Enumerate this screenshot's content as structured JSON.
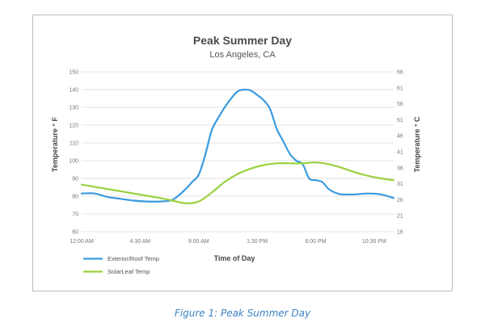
{
  "chart_data": {
    "type": "line",
    "title": "Peak Summer Day",
    "subtitle": "Los Angeles, CA",
    "xlabel": "Time of Day",
    "ylabel_left": "Temperature ° F",
    "ylabel_right": "Temperature ° C",
    "x_ticks": [
      "12:00 AM",
      "4:30 AM",
      "9:00 AM",
      "1:30 PM",
      "6:00 PM",
      "10:30 PM"
    ],
    "x_tick_hours": [
      0,
      4.5,
      9,
      13.5,
      18,
      22.5
    ],
    "xlim": [
      0,
      24
    ],
    "ylim_left": [
      60,
      150
    ],
    "y_ticks_left": [
      "60",
      "70",
      "80",
      "90",
      "100",
      "110",
      "120",
      "130",
      "140",
      "150"
    ],
    "y_ticks_right": [
      "16",
      "21",
      "26",
      "31",
      "36",
      "41",
      "46",
      "51",
      "56",
      "61",
      "66"
    ],
    "grid": true,
    "legend_position": "bottom-left",
    "series": [
      {
        "name": "Exterior/Roof Temp",
        "color": "#3b9be0",
        "x": [
          0,
          1,
          2,
          3,
          4,
          5,
          6,
          7,
          8,
          8.5,
          9,
          9.5,
          10,
          10.5,
          11,
          11.5,
          12,
          12.5,
          13,
          13.5,
          14,
          14.5,
          15,
          15.5,
          16,
          16.5,
          17,
          17.5,
          18,
          18.5,
          19,
          19.5,
          20,
          21,
          22,
          23,
          24
        ],
        "y": [
          81.5,
          81.5,
          79.5,
          78.5,
          77.5,
          77,
          77,
          78,
          84,
          88,
          92,
          103,
          117,
          124,
          130,
          135,
          139,
          140,
          139.5,
          137,
          134,
          129,
          118,
          111,
          104,
          100,
          98,
          90,
          89,
          88,
          84,
          82,
          81,
          81,
          81.5,
          81,
          79
        ]
      },
      {
        "name": "SolarLeaf Temp",
        "color": "#9bd13f",
        "x": [
          0,
          2,
          4,
          6,
          7,
          8,
          9,
          10,
          11,
          12,
          13,
          14,
          15,
          16,
          17,
          18,
          19,
          20,
          21,
          22,
          23,
          24
        ],
        "y": [
          86.5,
          84,
          81.5,
          79,
          77.5,
          76,
          77,
          82,
          88,
          92.5,
          95.5,
          97.5,
          98.5,
          98.5,
          98.5,
          99,
          98,
          96,
          93.5,
          91.5,
          90,
          89
        ]
      }
    ]
  },
  "caption": "Figure 1: Peak Summer Day"
}
